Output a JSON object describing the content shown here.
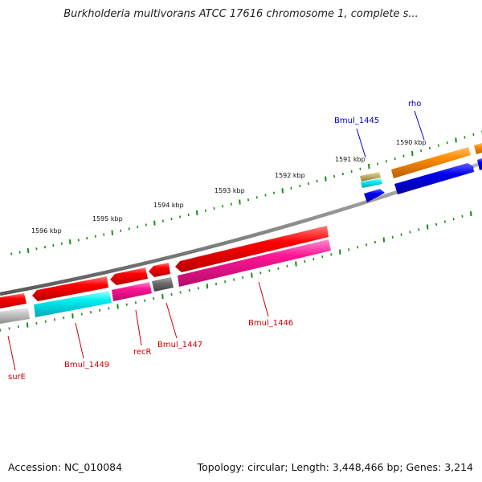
{
  "title": "Burkholderia multivorans ATCC 17616 chromosome 1, complete s...",
  "footer": {
    "accession": "Accession: NC_010084",
    "topology": "Topology: circular; Length: 3,448,466 bp; Genes: 3,214"
  },
  "scale_labels": [
    "1591 kbp",
    "1590 kbp",
    "1592 kbp",
    "1593 kbp",
    "1594 kbp",
    "1595 kbp",
    "1596 kbp"
  ],
  "gene_labels": [
    {
      "text": "Bmul_1445",
      "color": "#0000cc"
    },
    {
      "text": "rho",
      "color": "#0000cc"
    },
    {
      "text": "Bmul_1446",
      "color": "#cc0000"
    },
    {
      "text": "Bmul_1447",
      "color": "#cc0000"
    },
    {
      "text": "recR",
      "color": "#cc0000"
    },
    {
      "text": "Bmul_1449",
      "color": "#cc0000"
    },
    {
      "text": "surE",
      "color": "#cc0000"
    }
  ],
  "colors": {
    "tick": "#1a8a1a",
    "backbone": "#8a8a8a",
    "red_gene": "#ee0000",
    "magenta_gene": "#e8168c",
    "cyan_gene": "#00e8f0",
    "gray_gene": "#686868",
    "light_gray_gene": "#bdbdbd",
    "orange_gene": "#ff8c00",
    "blue_gene": "#0000e8",
    "tan_gene": "#c8b46e"
  }
}
